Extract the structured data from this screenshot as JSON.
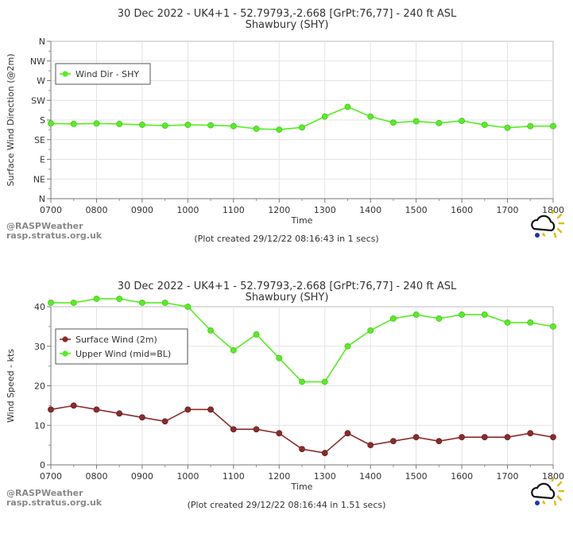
{
  "credit": {
    "line1": "@RASPWeather",
    "line2": "rasp.stratus.org.uk"
  },
  "chart_data": [
    {
      "type": "line",
      "title": "30 Dec 2022 - UK4+1 - 52.79793,-2.668 [GrPt:76,77]  - 240 ft ASL",
      "subtitle": "Shawbury (SHY)",
      "xlabel": "Time",
      "ylabel": "Surface Wind Direction (@2m)",
      "x_ticks": [
        "0700",
        "0800",
        "0900",
        "1000",
        "1100",
        "1200",
        "1300",
        "1400",
        "1500",
        "1600",
        "1700",
        "1800"
      ],
      "y_ticks": [
        "N",
        "NE",
        "E",
        "SE",
        "S",
        "SW",
        "W",
        "NW",
        "N"
      ],
      "y_unit": "degrees",
      "ylim": [
        0,
        360
      ],
      "grid": true,
      "legend": "top-left",
      "x": [
        "0700",
        "0730",
        "0800",
        "0830",
        "0900",
        "0930",
        "1000",
        "1030",
        "1100",
        "1130",
        "1200",
        "1230",
        "1300",
        "1330",
        "1400",
        "1430",
        "1500",
        "1530",
        "1600",
        "1630",
        "1700",
        "1730",
        "1800"
      ],
      "series": [
        {
          "name": "Wind Dir - SHY",
          "color": "#55ee22",
          "values": [
            172,
            171,
            172,
            171,
            169,
            167,
            169,
            168,
            166,
            160,
            158,
            163,
            188,
            210,
            188,
            174,
            177,
            173,
            178,
            169,
            162,
            166,
            166
          ]
        }
      ],
      "footer": "(Plot created 29/12/22 08:16:43 in 1 secs)"
    },
    {
      "type": "line",
      "title": "30 Dec 2022 - UK4+1 - 52.79793,-2.668 [GrPt:76,77]  - 240 ft ASL",
      "subtitle": "Shawbury (SHY)",
      "xlabel": "Time",
      "ylabel": "Wind Speed - kts",
      "x_ticks": [
        "0700",
        "0800",
        "0900",
        "1000",
        "1100",
        "1200",
        "1300",
        "1400",
        "1500",
        "1600",
        "1700",
        "1800"
      ],
      "y_ticks": [
        "0",
        "10",
        "20",
        "30",
        "40"
      ],
      "ylim": [
        0,
        40
      ],
      "grid": true,
      "legend": "top-left",
      "x": [
        "0700",
        "0730",
        "0800",
        "0830",
        "0900",
        "0930",
        "1000",
        "1030",
        "1100",
        "1130",
        "1200",
        "1230",
        "1300",
        "1330",
        "1400",
        "1430",
        "1500",
        "1530",
        "1600",
        "1630",
        "1700",
        "1730",
        "1800"
      ],
      "series": [
        {
          "name": "Surface Wind (2m)",
          "color": "#8b2a2a",
          "values": [
            14,
            15,
            14,
            13,
            12,
            11,
            14,
            14,
            9,
            9,
            8,
            4,
            3,
            8,
            5,
            6,
            7,
            6,
            7,
            7,
            7,
            8,
            7
          ]
        },
        {
          "name": "Upper Wind (mid=BL)",
          "color": "#55ee22",
          "values": [
            41,
            41,
            42,
            42,
            41,
            41,
            40,
            34,
            29,
            33,
            27,
            21,
            21,
            30,
            34,
            37,
            38,
            37,
            38,
            38,
            36,
            36,
            35
          ]
        }
      ],
      "footer": "(Plot created 29/12/22 08:16:44 in 1.51 secs)"
    }
  ]
}
